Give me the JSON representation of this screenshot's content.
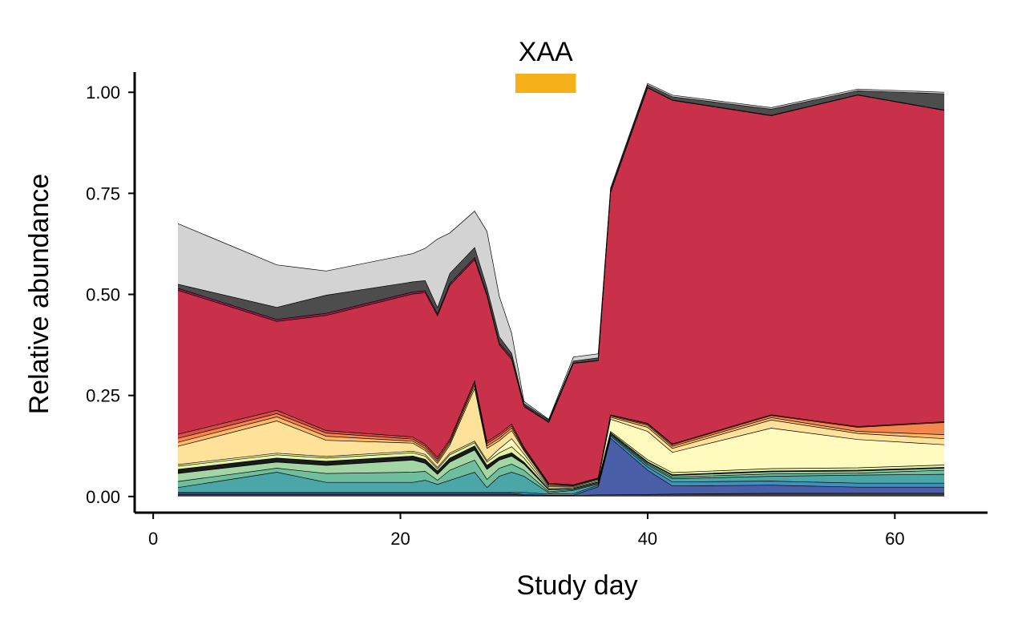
{
  "chart_data": {
    "type": "area",
    "title": "",
    "xlabel": "Study day",
    "ylabel": "Relative abundance",
    "xlim": [
      -1.5,
      67.5
    ],
    "ylim": [
      -0.04,
      1.05
    ],
    "x_ticks": [
      0,
      20,
      40,
      60
    ],
    "x_tick_labels": [
      "0",
      "20",
      "40",
      "60"
    ],
    "y_ticks": [
      0,
      0.25,
      0.5,
      0.75,
      1
    ],
    "y_tick_labels": [
      "0.00",
      "0.25",
      "0.50",
      "0.75",
      "1.00"
    ],
    "grid": false,
    "legend": "none",
    "annotation": {
      "label": "XAA",
      "x_start": 29.3,
      "x_end": 34.2,
      "color": "#F6B11A"
    },
    "x": [
      2,
      10,
      14,
      21,
      22,
      23,
      24,
      26,
      27,
      28,
      29,
      30,
      32,
      34,
      36,
      37,
      40,
      42,
      50,
      57,
      64
    ],
    "series": [
      {
        "color": "#3a3a3a",
        "values": [
          0.005,
          0.005,
          0.005,
          0.005,
          0.005,
          0.005,
          0.005,
          0.005,
          0.005,
          0.005,
          0.005,
          0.003,
          0.002,
          0.002,
          0.004,
          0.004,
          0.005,
          0.006,
          0.008,
          0.008,
          0.008
        ]
      },
      {
        "color": "#4A5FA8",
        "values": [
          0.003,
          0.003,
          0.003,
          0.003,
          0.003,
          0.003,
          0.003,
          0.003,
          0.003,
          0.003,
          0.003,
          0.002,
          0.001,
          0.001,
          0.02,
          0.14,
          0.06,
          0.02,
          0.02,
          0.015,
          0.015
        ]
      },
      {
        "color": "#3F8FBF",
        "values": [
          0.002,
          0.002,
          0.002,
          0.002,
          0.002,
          0.002,
          0.002,
          0.002,
          0.002,
          0.002,
          0.002,
          0.005,
          0.003,
          0.004,
          0.004,
          0.006,
          0.008,
          0.01,
          0.01,
          0.01,
          0.01
        ]
      },
      {
        "color": "#4BA6A8",
        "values": [
          0.012,
          0.05,
          0.025,
          0.025,
          0.03,
          0.02,
          0.03,
          0.05,
          0.012,
          0.04,
          0.05,
          0.04,
          0.003,
          0.008,
          0.003,
          0.003,
          0.005,
          0.008,
          0.012,
          0.02,
          0.022
        ]
      },
      {
        "color": "#6FBE9E",
        "values": [
          0.015,
          0.01,
          0.022,
          0.025,
          0.022,
          0.01,
          0.025,
          0.03,
          0.02,
          0.02,
          0.02,
          0.015,
          0.003,
          0.002,
          0.002,
          0.002,
          0.003,
          0.004,
          0.006,
          0.005,
          0.01
        ]
      },
      {
        "color": "#A3D6A4",
        "values": [
          0.02,
          0.015,
          0.02,
          0.03,
          0.02,
          0.015,
          0.02,
          0.025,
          0.025,
          0.02,
          0.02,
          0.015,
          0.004,
          0.002,
          0.002,
          0.002,
          0.003,
          0.004,
          0.005,
          0.005,
          0.005
        ]
      },
      {
        "color": "#1a1a1a",
        "values": [
          0.01,
          0.01,
          0.01,
          0.01,
          0.01,
          0.008,
          0.01,
          0.01,
          0.01,
          0.008,
          0.008,
          0.005,
          0.002,
          0.001,
          0.001,
          0.001,
          0.002,
          0.002,
          0.002,
          0.002,
          0.002
        ]
      },
      {
        "color": "#E6F5A0",
        "values": [
          0.008,
          0.008,
          0.008,
          0.008,
          0.008,
          0.005,
          0.008,
          0.008,
          0.008,
          0.01,
          0.015,
          0.01,
          0.003,
          0.002,
          0.002,
          0.003,
          0.005,
          0.005,
          0.006,
          0.006,
          0.006
        ]
      },
      {
        "color": "#FFFBBE",
        "values": [
          0.004,
          0.004,
          0.004,
          0.004,
          0.004,
          0.004,
          0.004,
          0.004,
          0.004,
          0.01,
          0.02,
          0.01,
          0.003,
          0.002,
          0.003,
          0.03,
          0.07,
          0.05,
          0.1,
          0.07,
          0.05
        ]
      },
      {
        "color": "#FEE29A",
        "values": [
          0.045,
          0.08,
          0.04,
          0.02,
          0.01,
          0.01,
          0.02,
          0.13,
          0.03,
          0.02,
          0.02,
          0.008,
          0.003,
          0.002,
          0.002,
          0.005,
          0.01,
          0.01,
          0.02,
          0.015,
          0.015
        ]
      },
      {
        "color": "#FDB966",
        "values": [
          0.01,
          0.01,
          0.01,
          0.005,
          0.005,
          0.005,
          0.005,
          0.008,
          0.006,
          0.006,
          0.006,
          0.003,
          0.002,
          0.001,
          0.001,
          0.003,
          0.005,
          0.005,
          0.006,
          0.005,
          0.01
        ]
      },
      {
        "color": "#F4874D",
        "values": [
          0.01,
          0.008,
          0.008,
          0.005,
          0.005,
          0.005,
          0.005,
          0.006,
          0.006,
          0.006,
          0.005,
          0.003,
          0.002,
          0.001,
          0.001,
          0.002,
          0.003,
          0.004,
          0.005,
          0.01,
          0.03
        ]
      },
      {
        "color": "#DD4F45",
        "values": [
          0.01,
          0.008,
          0.006,
          0.005,
          0.005,
          0.005,
          0.005,
          0.005,
          0.005,
          0.005,
          0.005,
          0.003,
          0.002,
          0.001,
          0.001,
          0.001,
          0.002,
          0.002,
          0.002,
          0.002,
          0.002
        ]
      },
      {
        "color": "#C9304A",
        "values": [
          0.356,
          0.22,
          0.285,
          0.354,
          0.375,
          0.35,
          0.38,
          0.3,
          0.36,
          0.22,
          0.16,
          0.1,
          0.15,
          0.3,
          0.29,
          0.55,
          0.83,
          0.85,
          0.74,
          0.82,
          0.77
        ]
      },
      {
        "color": "#9E1A4A",
        "values": [
          0.005,
          0.005,
          0.005,
          0.005,
          0.005,
          0.005,
          0.005,
          0.005,
          0.005,
          0.005,
          0.005,
          0.003,
          0.002,
          0.001,
          0.001,
          0.001,
          0.001,
          0.001,
          0.001,
          0.001,
          0.001
        ]
      },
      {
        "color": "#4d4d4d",
        "values": [
          0.01,
          0.03,
          0.045,
          0.025,
          0.025,
          0.015,
          0.025,
          0.025,
          0.015,
          0.015,
          0.01,
          0.005,
          0.004,
          0.005,
          0.006,
          0.006,
          0.006,
          0.008,
          0.015,
          0.01,
          0.04
        ]
      },
      {
        "color": "#d3d3d3",
        "values": [
          0.15,
          0.105,
          0.06,
          0.07,
          0.08,
          0.17,
          0.1,
          0.09,
          0.14,
          0.1,
          0.05,
          0.005,
          0.002,
          0.01,
          0.01,
          0.004,
          0.004,
          0.004,
          0.004,
          0.004,
          0.004
        ]
      }
    ],
    "series_boundaries": [
      0.0,
      0.005,
      0.008,
      0.01,
      0.022,
      0.037,
      0.057,
      0.067,
      0.075,
      0.079,
      0.124,
      0.134,
      0.144,
      0.154,
      0.51,
      0.515,
      0.525,
      0.675
    ],
    "note": ""
  }
}
